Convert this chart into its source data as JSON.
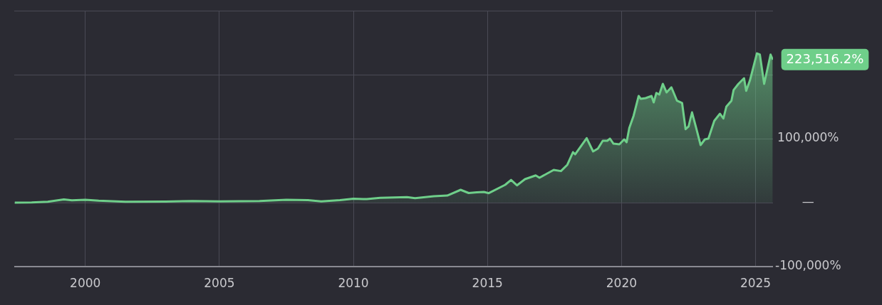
{
  "chart_data": {
    "type": "area",
    "x": [
      1997.37,
      1998.0,
      1998.6,
      1999.2,
      1999.5,
      2000.0,
      2000.5,
      2001.5,
      2003.0,
      2004.0,
      2005.0,
      2006.5,
      2007.5,
      2008.3,
      2008.8,
      2009.5,
      2010.0,
      2010.5,
      2011.0,
      2012.0,
      2012.3,
      2013.0,
      2013.5,
      2014.0,
      2014.3,
      2014.6,
      2014.87,
      2015.05,
      2015.66,
      2015.88,
      2016.1,
      2016.4,
      2016.8,
      2016.94,
      2017.47,
      2017.74,
      2017.98,
      2018.19,
      2018.27,
      2018.7,
      2018.94,
      2019.12,
      2019.3,
      2019.47,
      2019.57,
      2019.7,
      2019.92,
      2020.1,
      2020.19,
      2020.29,
      2020.45,
      2020.64,
      2020.72,
      2020.9,
      2021.12,
      2021.2,
      2021.3,
      2021.41,
      2021.54,
      2021.68,
      2021.86,
      2022.07,
      2022.26,
      2022.39,
      2022.5,
      2022.63,
      2022.77,
      2022.95,
      2023.11,
      2023.24,
      2023.46,
      2023.67,
      2023.8,
      2023.91,
      2024.1,
      2024.18,
      2024.36,
      2024.57,
      2024.65,
      2024.79,
      2025.05,
      2025.16,
      2025.32,
      2025.56,
      2025.64
    ],
    "series": [
      {
        "color": "#6fcf8a",
        "values": [
          0,
          300,
          1500,
          5000,
          3500,
          4500,
          3000,
          1500,
          1800,
          2500,
          2000,
          2500,
          4500,
          4000,
          2000,
          4000,
          6000,
          5500,
          7500,
          8500,
          7000,
          10000,
          11000,
          20000,
          15000,
          16000,
          16700,
          14800,
          27800,
          35500,
          27000,
          36700,
          42500,
          38900,
          51100,
          49300,
          59200,
          78900,
          75500,
          100800,
          80000,
          84400,
          96700,
          96700,
          100000,
          92200,
          91100,
          98900,
          94400,
          116700,
          135600,
          166700,
          162200,
          163300,
          166700,
          156700,
          171400,
          168900,
          185600,
          172200,
          180300,
          159200,
          155600,
          114800,
          118900,
          141100,
          118900,
          90000,
          98900,
          100000,
          127800,
          138900,
          131400,
          150000,
          159200,
          175900,
          185600,
          194400,
          174800,
          191100,
          233300,
          231400,
          185600,
          231400,
          223516.2
        ]
      }
    ],
    "xlim": [
      1997.35,
      2025.65
    ],
    "xticks": [
      2000,
      2005,
      2010,
      2015,
      2020,
      2025
    ],
    "ylim": [
      -100000,
      300000
    ],
    "yticks": [
      {
        "value": -100000,
        "label": "-100,000%"
      },
      {
        "value": 0,
        "label": "—"
      },
      {
        "value": 100000,
        "label": "100,000%"
      },
      {
        "value": 200000,
        "label": null
      },
      {
        "value": 300000,
        "label": null
      }
    ],
    "annotations": [
      {
        "text": "223,516.2%",
        "x": 2025.64,
        "y": 223516.2
      }
    ],
    "grid": true,
    "legend": false
  }
}
